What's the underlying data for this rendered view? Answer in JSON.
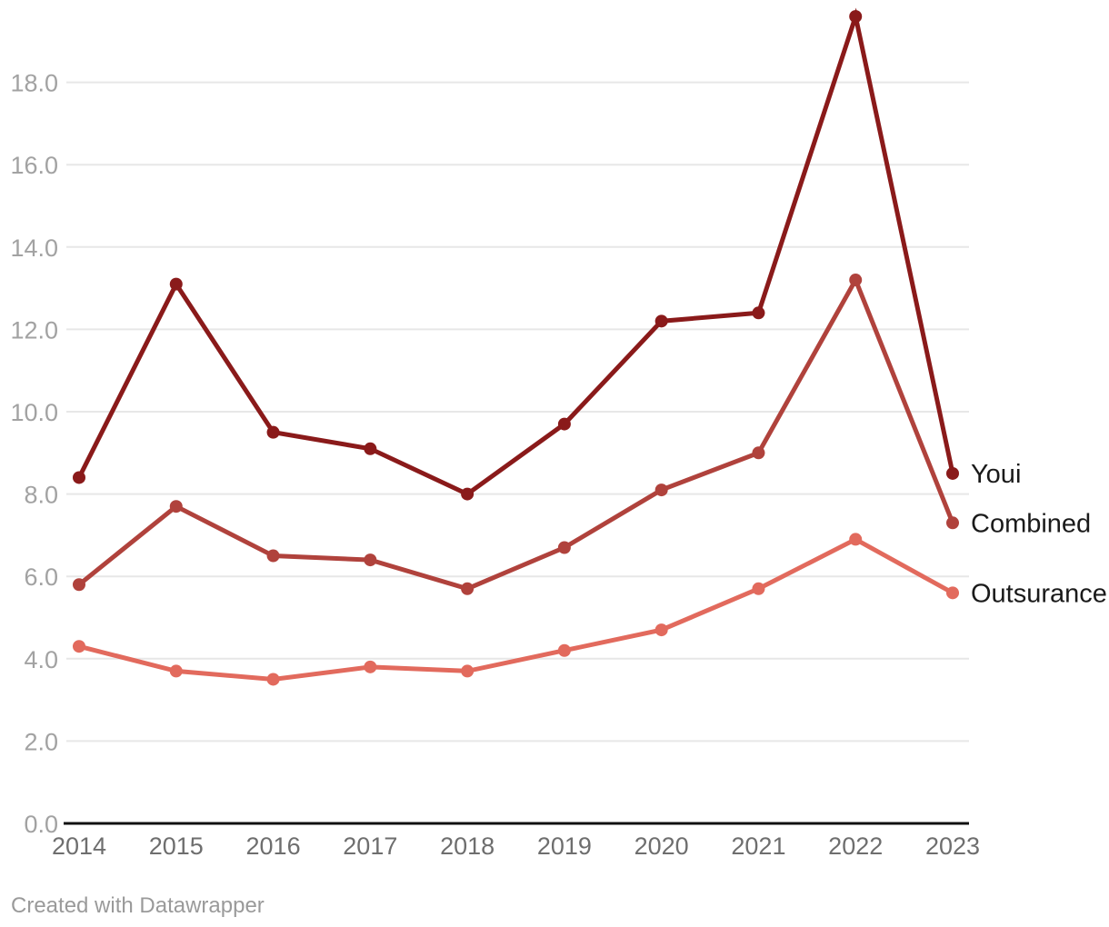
{
  "chart_data": {
    "type": "line",
    "title": "",
    "xlabel": "",
    "ylabel": "",
    "categories": [
      "2014",
      "2015",
      "2016",
      "2017",
      "2018",
      "2019",
      "2020",
      "2021",
      "2022",
      "2023"
    ],
    "series": [
      {
        "name": "Youi",
        "color": "#8a1a1a",
        "values": [
          8.4,
          13.1,
          9.5,
          9.1,
          8.0,
          9.7,
          12.2,
          12.4,
          19.6,
          8.5
        ]
      },
      {
        "name": "Combined",
        "color": "#b0423c",
        "values": [
          5.8,
          7.7,
          6.5,
          6.4,
          5.7,
          6.7,
          8.1,
          9.0,
          13.2,
          7.3
        ]
      },
      {
        "name": "Outsurance",
        "color": "#e26a5d",
        "values": [
          4.3,
          3.7,
          3.5,
          3.8,
          3.7,
          4.2,
          4.7,
          5.7,
          6.9,
          5.6
        ]
      }
    ],
    "yticks": [
      0,
      2,
      4,
      6,
      8,
      10,
      12,
      14,
      16,
      18
    ],
    "ytick_format": "one_decimal",
    "ylim": [
      0,
      20
    ],
    "grid": true,
    "legend_position": "direct-labels-right"
  },
  "footer": {
    "credit": "Created with Datawrapper"
  },
  "styles": {
    "background": "#ffffff",
    "grid_color": "#e7e7e7",
    "axis_color": "#111111",
    "ytick_color": "#a2a2a2",
    "xtick_color": "#6e6e6e",
    "series_label_color": "#1a1a1a",
    "footer_color": "#9a9a9a"
  }
}
